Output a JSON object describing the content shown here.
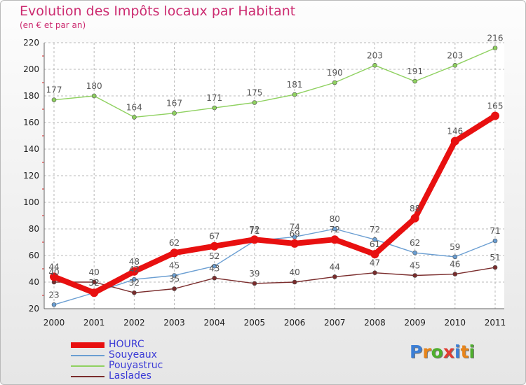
{
  "title": "Evolution des Impôts locaux par Habitant",
  "subtitle": "(en € et par an)",
  "logo": {
    "text": "Proxiti",
    "letter_colors": [
      "#3c7fd6",
      "#e8851a",
      "#4fae2e",
      "#e23c32",
      "#3c7fd6",
      "#e8851a",
      "#4fae2e"
    ]
  },
  "chart_data": {
    "type": "line",
    "title": "Evolution des Impôts locaux par Habitant",
    "subtitle": "(en € et par an)",
    "xlabel": "",
    "ylabel": "",
    "x": [
      "2000",
      "2001",
      "2002",
      "2003",
      "2004",
      "2005",
      "2006",
      "2007",
      "2008",
      "2009",
      "2010",
      "2011"
    ],
    "ylim": [
      20,
      220
    ],
    "yticks": [
      "20",
      "40",
      "60",
      "80",
      "100",
      "120",
      "140",
      "160",
      "180",
      "200",
      "220"
    ],
    "grid": true,
    "legend_position": "bottom-left",
    "series": [
      {
        "name": "HOURC",
        "color": "#e81010",
        "emphasis": true,
        "values": [
          44,
          32,
          48,
          62,
          67,
          72,
          69,
          72,
          61,
          88,
          146,
          165
        ]
      },
      {
        "name": "Souyeaux",
        "color": "#6a9ed2",
        "emphasis": false,
        "values": [
          23,
          32,
          42,
          45,
          52,
          71,
          74,
          80,
          72,
          62,
          59,
          71
        ]
      },
      {
        "name": "Pouyastruc",
        "color": "#8fd160",
        "emphasis": false,
        "values": [
          177,
          180,
          164,
          167,
          171,
          175,
          181,
          190,
          203,
          191,
          203,
          216
        ]
      },
      {
        "name": "Laslades",
        "color": "#7a2c2c",
        "emphasis": false,
        "values": [
          40,
          40,
          32,
          35,
          43,
          39,
          40,
          44,
          47,
          45,
          46,
          51
        ]
      }
    ]
  }
}
